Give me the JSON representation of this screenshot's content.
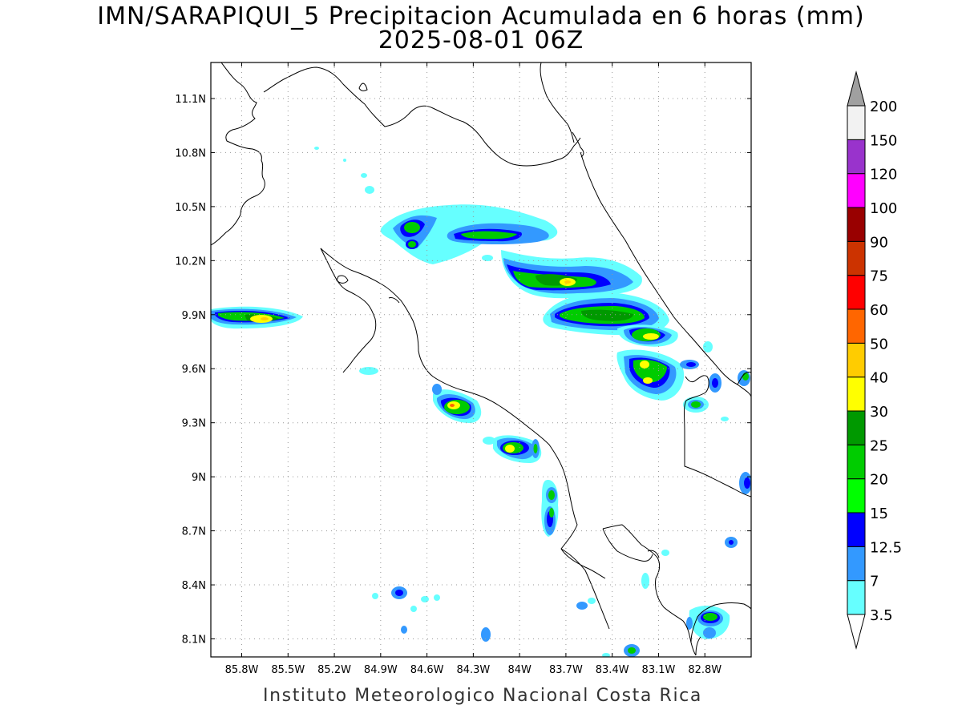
{
  "title": {
    "line1": "IMN/SARAPIQUI_5 Precipitacion Acumulada en 6 horas (mm)",
    "line2": "2025-08-01 06Z"
  },
  "footer": "Instituto Meteorologico Nacional Costa Rica",
  "map": {
    "lon_range": [
      -86.0,
      -82.5
    ],
    "lat_range": [
      8.0,
      11.3
    ],
    "lat_ticks": [
      {
        "value": 11.1,
        "label": "11.1N"
      },
      {
        "value": 10.8,
        "label": "10.8N"
      },
      {
        "value": 10.5,
        "label": "10.5N"
      },
      {
        "value": 10.2,
        "label": "10.2N"
      },
      {
        "value": 9.9,
        "label": "9.9N"
      },
      {
        "value": 9.6,
        "label": "9.6N"
      },
      {
        "value": 9.3,
        "label": "9.3N"
      },
      {
        "value": 9.0,
        "label": "9N"
      },
      {
        "value": 8.7,
        "label": "8.7N"
      },
      {
        "value": 8.4,
        "label": "8.4N"
      },
      {
        "value": 8.1,
        "label": "8.1N"
      }
    ],
    "lon_ticks": [
      {
        "value": -85.8,
        "label": "85.8W"
      },
      {
        "value": -85.5,
        "label": "85.5W"
      },
      {
        "value": -85.2,
        "label": "85.2W"
      },
      {
        "value": -84.9,
        "label": "84.9W"
      },
      {
        "value": -84.6,
        "label": "84.6W"
      },
      {
        "value": -84.3,
        "label": "84.3W"
      },
      {
        "value": -84.0,
        "label": "84W"
      },
      {
        "value": -83.7,
        "label": "83.7W"
      },
      {
        "value": -83.4,
        "label": "83.4W"
      },
      {
        "value": -83.1,
        "label": "83.1W"
      },
      {
        "value": -82.8,
        "label": "82.8W"
      }
    ],
    "gridlines": "dotted"
  },
  "colorbar": {
    "unit": "mm",
    "top_arrow_color": "#a0a0a0",
    "bottom_arrow_color": "#ffffff",
    "levels": [
      {
        "label": "3.5",
        "color": "#66ffff"
      },
      {
        "label": "7",
        "color": "#3399ff"
      },
      {
        "label": "12.5",
        "color": "#0000ff"
      },
      {
        "label": "15",
        "color": "#00ff00"
      },
      {
        "label": "20",
        "color": "#00cc00"
      },
      {
        "label": "25",
        "color": "#009900"
      },
      {
        "label": "30",
        "color": "#ffff00"
      },
      {
        "label": "40",
        "color": "#ffcc00"
      },
      {
        "label": "50",
        "color": "#ff6600"
      },
      {
        "label": "60",
        "color": "#ff0000"
      },
      {
        "label": "75",
        "color": "#cc3300"
      },
      {
        "label": "90",
        "color": "#990000"
      },
      {
        "label": "100",
        "color": "#ff00ff"
      },
      {
        "label": "120",
        "color": "#9933cc"
      },
      {
        "label": "150",
        "color": "#f2f2f2"
      },
      {
        "label": "200",
        "color": ""
      }
    ]
  },
  "precip_cells": [
    {
      "lon": -85.72,
      "lat": 9.88,
      "max_mm": 30
    },
    {
      "lon": -84.7,
      "lat": 10.37,
      "max_mm": 25
    },
    {
      "lon": -84.7,
      "lat": 10.28,
      "max_mm": 25
    },
    {
      "lon": -84.2,
      "lat": 10.37,
      "max_mm": 20
    },
    {
      "lon": -83.72,
      "lat": 10.08,
      "max_mm": 40
    },
    {
      "lon": -83.5,
      "lat": 9.9,
      "max_mm": 25
    },
    {
      "lon": -83.12,
      "lat": 9.8,
      "max_mm": 30
    },
    {
      "lon": -83.1,
      "lat": 9.6,
      "max_mm": 30
    },
    {
      "lon": -83.1,
      "lat": 9.52,
      "max_mm": 30
    },
    {
      "lon": -84.4,
      "lat": 9.39,
      "max_mm": 50
    },
    {
      "lon": -84.0,
      "lat": 9.16,
      "max_mm": 40
    },
    {
      "lon": -83.8,
      "lat": 8.78,
      "max_mm": 25
    },
    {
      "lon": -82.8,
      "lat": 8.24,
      "max_mm": 25
    },
    {
      "lon": -82.88,
      "lat": 9.4,
      "max_mm": 25
    }
  ]
}
